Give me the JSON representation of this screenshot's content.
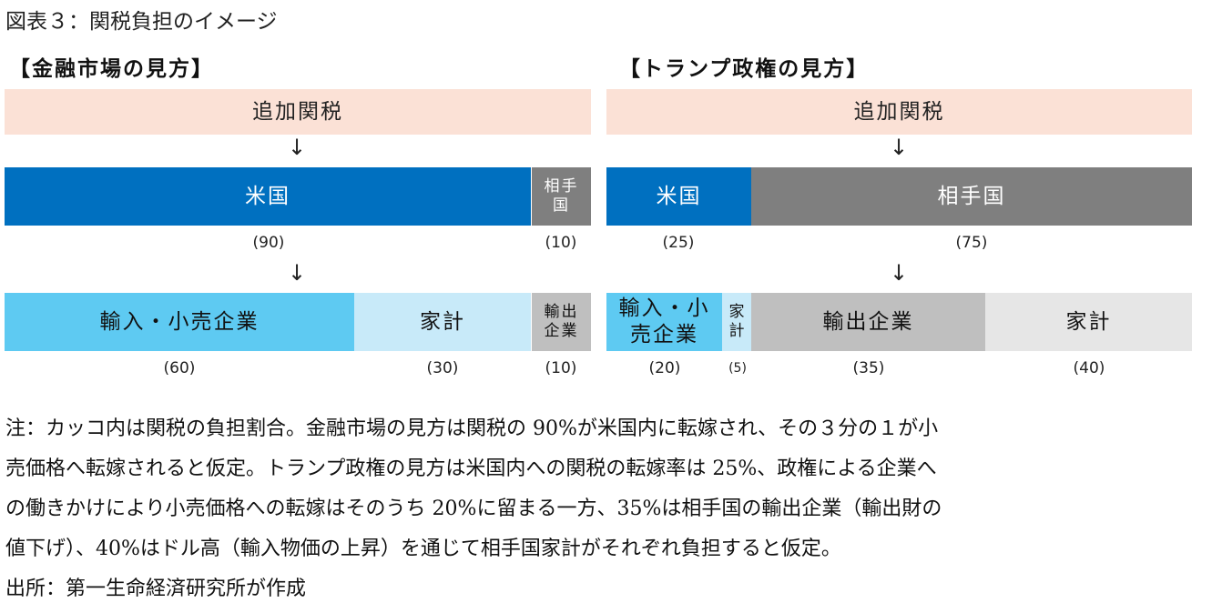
{
  "title": "図表３：関税負担のイメージ",
  "colors": {
    "tariff": "#fbe1d6",
    "us": "#0070c0",
    "partner": "#7f7f7f",
    "importer": "#5ecaf2",
    "household_us": "#c8eaf9",
    "exporter": "#bfbfbf",
    "household_partner": "#e6e6e6"
  },
  "arrow": "↓",
  "left": {
    "heading": "【金融市場の見方】",
    "tariff": "追加関税",
    "level1": [
      {
        "label": "米国",
        "share": "(90)"
      },
      {
        "label": "相手国",
        "share": "(10)"
      }
    ],
    "level2": [
      {
        "label": "輸入・小売企業",
        "share": "(60)"
      },
      {
        "label": "家計",
        "share": "(30)"
      },
      {
        "label": "輸出企業",
        "share": "(10)"
      }
    ]
  },
  "right": {
    "heading": "【トランプ政権の見方】",
    "tariff": "追加関税",
    "level1": [
      {
        "label": "米国",
        "share": "(25)"
      },
      {
        "label": "相手国",
        "share": "(75)"
      }
    ],
    "level2": [
      {
        "label": "輸入・小売企業",
        "share": "(20)"
      },
      {
        "label": "家計",
        "share": "(5)"
      },
      {
        "label": "輸出企業",
        "share": "(35)"
      },
      {
        "label": "家計",
        "share": "(40)"
      }
    ]
  },
  "notes": [
    "注：カッコ内は関税の負担割合。金融市場の見方は関税の 90%が米国内に転嫁され、その３分の１が小",
    "売価格へ転嫁されると仮定。トランプ政権の見方は米国内への関税の転嫁率は 25%、政権による企業へ",
    "の働きかけにより小売価格への転嫁はそのうち 20%に留まる一方、35%は相手国の輸出企業（輸出財の",
    "値下げ）、40%はドル高（輸入物価の上昇）を通じて相手国家計がそれぞれ負担すると仮定。"
  ],
  "source": "出所：第一生命経済研究所が作成"
}
